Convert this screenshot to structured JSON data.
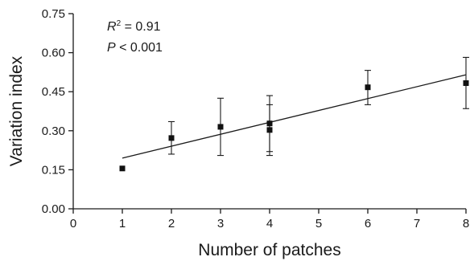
{
  "chart_data": {
    "type": "scatter",
    "title": "",
    "xlabel": "Number of patches",
    "ylabel": "Variation index",
    "xlim": [
      0,
      8
    ],
    "ylim": [
      0,
      0.75
    ],
    "xticks": [
      "0",
      "1",
      "2",
      "3",
      "4",
      "5",
      "6",
      "7",
      "8"
    ],
    "yticks": [
      "0.00",
      "0.15",
      "0.30",
      "0.45",
      "0.60",
      "0.75"
    ],
    "grid": false,
    "points": [
      {
        "x": 1,
        "y": 0.155,
        "err_low": 0.155,
        "err_high": 0.155
      },
      {
        "x": 2,
        "y": 0.272,
        "err_low": 0.21,
        "err_high": 0.335
      },
      {
        "x": 3,
        "y": 0.315,
        "err_low": 0.205,
        "err_high": 0.425
      },
      {
        "x": 4,
        "y": 0.328,
        "err_low": 0.22,
        "err_high": 0.435
      },
      {
        "x": 4,
        "y": 0.303,
        "err_low": 0.205,
        "err_high": 0.4
      },
      {
        "x": 6,
        "y": 0.467,
        "err_low": 0.4,
        "err_high": 0.532
      },
      {
        "x": 8,
        "y": 0.483,
        "err_low": 0.385,
        "err_high": 0.582
      }
    ],
    "fit_line": {
      "x": [
        1,
        8
      ],
      "y": [
        0.195,
        0.515
      ]
    },
    "annotations": {
      "r2_symbol": "R",
      "r2_sup": "2",
      "r2_value": " = 0.91",
      "p_symbol": "P",
      "p_value": " < 0.001"
    }
  }
}
